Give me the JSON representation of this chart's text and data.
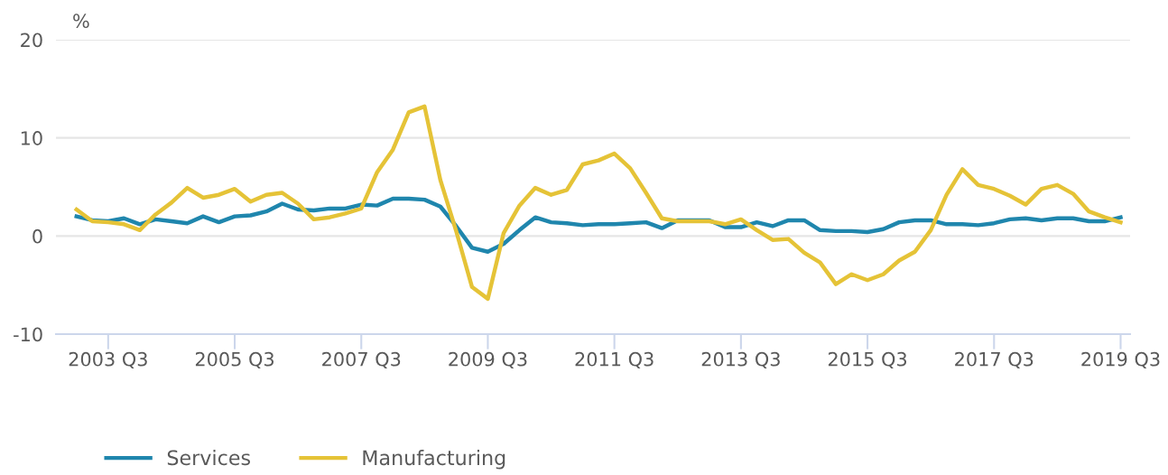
{
  "chart_data": {
    "type": "line",
    "ylabel": "%",
    "categories": [
      null,
      null,
      "2003 Q3",
      null,
      null,
      null,
      null,
      null,
      null,
      null,
      "2005 Q3",
      null,
      null,
      null,
      null,
      null,
      null,
      null,
      "2007 Q3",
      null,
      null,
      null,
      null,
      null,
      null,
      null,
      "2009 Q3",
      null,
      null,
      null,
      null,
      null,
      null,
      null,
      "2011 Q3",
      null,
      null,
      null,
      null,
      null,
      null,
      null,
      "2013 Q3",
      null,
      null,
      null,
      null,
      null,
      null,
      null,
      "2015 Q3",
      null,
      null,
      null,
      null,
      null,
      null,
      null,
      "2017 Q3",
      null,
      null,
      null,
      null,
      null,
      null,
      null,
      "2019 Q3"
    ],
    "series": [
      {
        "name": "Services",
        "color": "#1f86ad",
        "values": [
          2.0,
          1.6,
          1.5,
          1.8,
          1.2,
          1.7,
          1.5,
          1.3,
          2.0,
          1.4,
          2.0,
          2.1,
          2.5,
          3.3,
          2.7,
          2.6,
          2.8,
          2.8,
          3.2,
          3.1,
          3.8,
          3.8,
          3.7,
          3.0,
          1.0,
          -1.2,
          -1.6,
          -0.8,
          0.6,
          1.9,
          1.4,
          1.3,
          1.1,
          1.2,
          1.2,
          1.3,
          1.4,
          0.8,
          1.6,
          1.6,
          1.6,
          0.9,
          0.9,
          1.4,
          1.0,
          1.6,
          1.6,
          0.6,
          0.5,
          0.5,
          0.4,
          0.7,
          1.4,
          1.6,
          1.6,
          1.2,
          1.2,
          1.1,
          1.3,
          1.7,
          1.8,
          1.6,
          1.8,
          1.8,
          1.5,
          1.5,
          1.9
        ]
      },
      {
        "name": "Manufacturing",
        "color": "#e5c337",
        "values": [
          2.7,
          1.5,
          1.4,
          1.2,
          0.6,
          2.2,
          3.4,
          4.9,
          3.9,
          4.2,
          4.8,
          3.5,
          4.2,
          4.4,
          3.3,
          1.7,
          1.9,
          2.3,
          2.8,
          6.5,
          8.8,
          12.6,
          13.2,
          5.7,
          0.5,
          -5.2,
          -6.4,
          0.3,
          3.1,
          4.9,
          4.2,
          4.7,
          7.3,
          7.7,
          8.4,
          6.9,
          4.4,
          1.8,
          1.5,
          1.5,
          1.5,
          1.2,
          1.7,
          0.6,
          -0.4,
          -0.3,
          -1.7,
          -2.7,
          -4.9,
          -3.9,
          -4.5,
          -3.9,
          -2.5,
          -1.6,
          0.6,
          4.2,
          6.8,
          5.2,
          4.8,
          4.1,
          3.2,
          4.8,
          5.2,
          4.3,
          2.5,
          1.9,
          1.4
        ]
      }
    ],
    "ylim": [
      -10,
      20
    ],
    "yticks": [
      -10,
      0,
      10,
      20
    ],
    "grid": "y",
    "legend": "bottom left",
    "marker": "none",
    "line_style": "solid"
  }
}
